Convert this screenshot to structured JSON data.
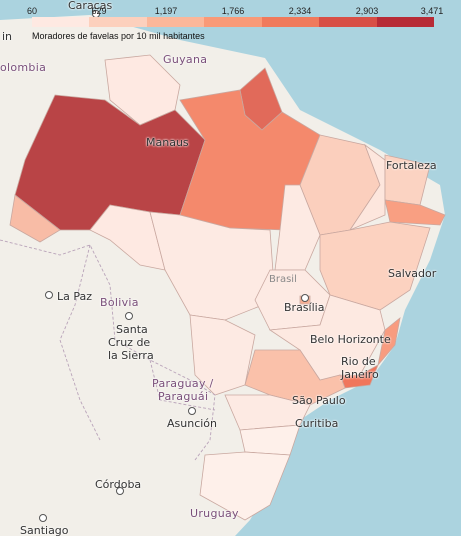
{
  "legend": {
    "title": "Moradores de favelas por 10 mil habitantes",
    "ticks": [
      "60",
      "629",
      "1,197",
      "1,766",
      "2,334",
      "2,903",
      "3,471"
    ],
    "colors": [
      "#fee9e2",
      "#fcd0bd",
      "#fbb79a",
      "#f99a78",
      "#f07a5c",
      "#d84f46",
      "#b72b36"
    ]
  },
  "places": {
    "caracas": "Caracas",
    "colombia": "olombia",
    "guyana": "Guyana",
    "manaus": "Manaus",
    "fortaleza": "Fortaleza",
    "salvador": "Salvador",
    "brasil": "Brasil",
    "brasilia": "Brasília",
    "la_paz": "La Paz",
    "bolivia": "Bolivia",
    "santa_cruz": [
      "Santa",
      "Cruz de",
      "la Sierra"
    ],
    "belo_horizonte": "Belo Horizonte",
    "rio": [
      "Rio de",
      "Janeiro"
    ],
    "sao_paulo": "São Paulo",
    "paraguay": [
      "Paraguay /",
      "Paraguái"
    ],
    "asuncion": "Asunción",
    "curitiba": "Curitiba",
    "cordoba": "Córdoba",
    "uruguay": "Uruguay",
    "santiago": "Santiago",
    "edge_fragment": "in"
  }
}
